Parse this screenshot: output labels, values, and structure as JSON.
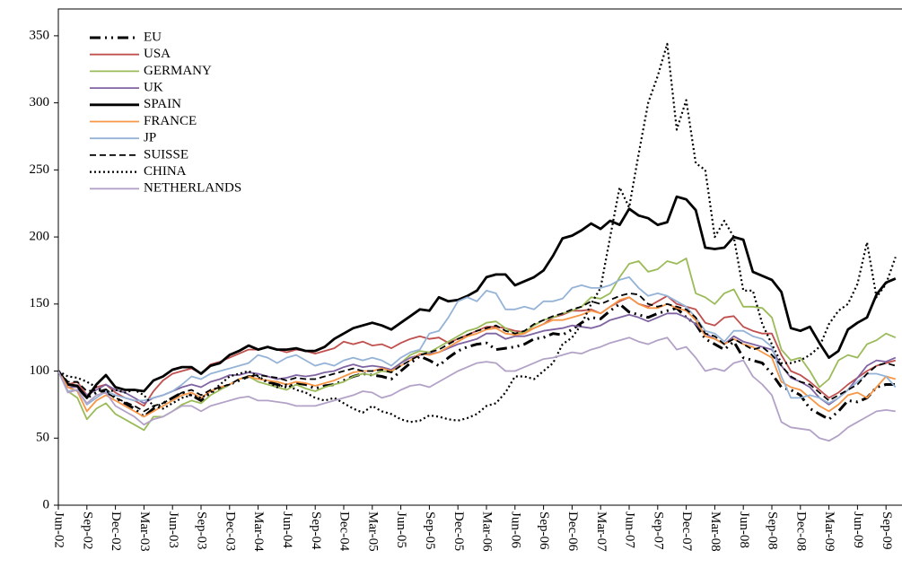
{
  "chart_data": {
    "type": "line",
    "categories": [
      "Jun-02",
      null,
      null,
      "Sep-02",
      null,
      null,
      "Dec-02",
      null,
      null,
      "Mar-03",
      null,
      null,
      "Jun-03",
      null,
      null,
      "Sep-03",
      null,
      null,
      "Dec-03",
      null,
      null,
      "Mar-04",
      null,
      null,
      "Jun-04",
      null,
      null,
      "Sep-04",
      null,
      null,
      "Dec-04",
      null,
      null,
      "Mar-05",
      null,
      null,
      "Jun-05",
      null,
      null,
      "Sep-05",
      null,
      null,
      "Dec-05",
      null,
      null,
      "Mar-06",
      null,
      null,
      "Jun-06",
      null,
      null,
      "Sep-06",
      null,
      null,
      "Dec-06",
      null,
      null,
      "Mar-07",
      null,
      null,
      "Jun-07",
      null,
      null,
      "Sep-07",
      null,
      null,
      "Dec-07",
      null,
      null,
      "Mar-08",
      null,
      null,
      "Jun-08",
      null,
      null,
      "Sep-08",
      null,
      null,
      "Dec-08",
      null,
      null,
      "Mar-09",
      null,
      null,
      "Jun-09",
      null,
      null,
      "Sep-09",
      null
    ],
    "ylim": [
      0,
      370
    ],
    "yticks": [
      0,
      50,
      100,
      150,
      200,
      250,
      300,
      350
    ],
    "grid": false,
    "legend": "upper left",
    "series": [
      {
        "name": "EU",
        "color": "#000000",
        "line_style": "dash-dot",
        "values": [
          100,
          90,
          88,
          80,
          84,
          86,
          80,
          76,
          72,
          66,
          72,
          76,
          80,
          84,
          82,
          78,
          84,
          87,
          90,
          93,
          96,
          95,
          92,
          90,
          88,
          91,
          90,
          87,
          89,
          90,
          93,
          96,
          98,
          97,
          96,
          94,
          100,
          106,
          111,
          108,
          104,
          110,
          115,
          118,
          120,
          121,
          116,
          117,
          118,
          120,
          124,
          125,
          128,
          127,
          131,
          136,
          140,
          139,
          145,
          150,
          144,
          142,
          140,
          143,
          145,
          147,
          140,
          135,
          124,
          120,
          116,
          122,
          110,
          108,
          106,
          98,
          88,
          86,
          82,
          72,
          68,
          64,
          70,
          78,
          77,
          80,
          88,
          90,
          90
        ]
      },
      {
        "name": "USA",
        "color": "#c0504d",
        "line_style": "solid",
        "values": [
          100,
          90,
          92,
          82,
          88,
          90,
          84,
          80,
          78,
          74,
          85,
          93,
          98,
          100,
          102,
          98,
          105,
          107,
          110,
          113,
          116,
          116,
          118,
          116,
          114,
          116,
          115,
          113,
          115,
          117,
          122,
          120,
          122,
          119,
          120,
          117,
          121,
          124,
          126,
          124,
          125,
          121,
          124,
          127,
          130,
          133,
          133,
          132,
          130,
          129,
          132,
          135,
          140,
          142,
          145,
          145,
          146,
          143,
          148,
          152,
          155,
          150,
          148,
          152,
          156,
          150,
          148,
          146,
          136,
          134,
          140,
          141,
          133,
          130,
          128,
          128,
          112,
          100,
          97,
          92,
          86,
          80,
          84,
          90,
          95,
          100,
          104,
          106,
          108
        ]
      },
      {
        "name": "GERMANY",
        "color": "#9bbb59",
        "line_style": "solid",
        "values": [
          100,
          85,
          80,
          64,
          72,
          76,
          68,
          64,
          60,
          56,
          66,
          66,
          70,
          75,
          78,
          76,
          82,
          86,
          90,
          94,
          96,
          92,
          90,
          88,
          86,
          90,
          87,
          85,
          88,
          90,
          92,
          96,
          98,
          97,
          100,
          99,
          106,
          112,
          115,
          114,
          118,
          122,
          126,
          130,
          132,
          136,
          137,
          132,
          128,
          129,
          134,
          138,
          140,
          143,
          145,
          148,
          155,
          154,
          158,
          170,
          180,
          182,
          174,
          176,
          182,
          180,
          184,
          158,
          155,
          150,
          158,
          161,
          148,
          148,
          147,
          140,
          116,
          108,
          110,
          100,
          88,
          94,
          108,
          112,
          110,
          120,
          123,
          128,
          125
        ]
      },
      {
        "name": "UK",
        "color": "#8064a2",
        "line_style": "solid",
        "values": [
          100,
          88,
          88,
          82,
          86,
          90,
          86,
          84,
          80,
          76,
          80,
          82,
          85,
          88,
          90,
          88,
          92,
          94,
          97,
          97,
          99,
          98,
          96,
          94,
          95,
          97,
          96,
          97,
          99,
          100,
          103,
          105,
          103,
          104,
          103,
          101,
          106,
          110,
          112,
          113,
          114,
          117,
          120,
          122,
          124,
          128,
          128,
          124,
          126,
          126,
          128,
          130,
          131,
          132,
          134,
          133,
          132,
          134,
          138,
          140,
          142,
          140,
          137,
          140,
          143,
          143,
          140,
          135,
          128,
          124,
          120,
          126,
          122,
          120,
          118,
          116,
          104,
          95,
          92,
          88,
          80,
          75,
          80,
          86,
          95,
          104,
          108,
          107,
          110
        ]
      },
      {
        "name": "SPAIN",
        "color": "#000000",
        "line_style": "thick",
        "values": [
          100,
          90,
          89,
          80,
          90,
          97,
          88,
          86,
          86,
          85,
          93,
          96,
          101,
          103,
          103,
          98,
          104,
          106,
          112,
          115,
          119,
          116,
          118,
          116,
          116,
          117,
          115,
          115,
          118,
          124,
          128,
          132,
          134,
          136,
          134,
          131,
          136,
          141,
          146,
          145,
          155,
          152,
          153,
          156,
          160,
          170,
          172,
          172,
          164,
          167,
          170,
          175,
          186,
          199,
          201,
          205,
          210,
          206,
          212,
          209,
          221,
          216,
          214,
          209,
          211,
          230,
          228,
          220,
          192,
          191,
          192,
          200,
          198,
          174,
          171,
          168,
          159,
          132,
          130,
          133,
          121,
          110,
          115,
          131,
          136,
          140,
          157,
          166,
          169
        ]
      },
      {
        "name": "FRANCE",
        "color": "#f79646",
        "line_style": "solid",
        "values": [
          100,
          88,
          85,
          70,
          78,
          82,
          78,
          74,
          70,
          66,
          70,
          74,
          78,
          82,
          84,
          80,
          85,
          88,
          90,
          94,
          96,
          94,
          93,
          92,
          90,
          92,
          91,
          89,
          91,
          93,
          96,
          99,
          100,
          100,
          102,
          100,
          104,
          108,
          113,
          112,
          114,
          118,
          122,
          126,
          128,
          131,
          132,
          128,
          127,
          128,
          132,
          135,
          138,
          138,
          140,
          142,
          145,
          143,
          148,
          153,
          155,
          150,
          147,
          147,
          150,
          147,
          145,
          138,
          126,
          124,
          120,
          124,
          120,
          118,
          114,
          110,
          92,
          88,
          86,
          80,
          74,
          70,
          75,
          82,
          84,
          80,
          88,
          96,
          94
        ]
      },
      {
        "name": "JP",
        "color": "#95b3d7",
        "line_style": "solid",
        "values": [
          100,
          85,
          86,
          75,
          80,
          85,
          82,
          80,
          78,
          78,
          80,
          82,
          85,
          90,
          96,
          94,
          98,
          100,
          102,
          104,
          106,
          112,
          110,
          106,
          110,
          112,
          108,
          104,
          106,
          104,
          108,
          110,
          108,
          110,
          108,
          104,
          110,
          114,
          116,
          128,
          130,
          140,
          152,
          155,
          152,
          160,
          158,
          146,
          146,
          148,
          146,
          152,
          152,
          154,
          162,
          164,
          162,
          162,
          164,
          168,
          170,
          162,
          156,
          158,
          156,
          152,
          148,
          140,
          130,
          128,
          122,
          130,
          130,
          126,
          124,
          118,
          96,
          80,
          80,
          82,
          80,
          76,
          80,
          86,
          92,
          98,
          98,
          96,
          88
        ]
      },
      {
        "name": "SUISSE",
        "color": "#000000",
        "line_style": "dashed",
        "values": [
          100,
          92,
          92,
          85,
          86,
          84,
          80,
          77,
          74,
          70,
          74,
          76,
          80,
          84,
          86,
          82,
          86,
          88,
          90,
          94,
          96,
          97,
          96,
          95,
          93,
          95,
          94,
          94,
          96,
          98,
          100,
          102,
          100,
          100,
          101,
          99,
          104,
          108,
          112,
          114,
          116,
          120,
          124,
          127,
          130,
          132,
          134,
          130,
          128,
          130,
          135,
          138,
          141,
          143,
          146,
          148,
          152,
          150,
          153,
          156,
          158,
          157,
          150,
          148,
          150,
          148,
          146,
          140,
          128,
          126,
          120,
          124,
          120,
          116,
          118,
          112,
          104,
          96,
          92,
          90,
          84,
          78,
          82,
          86,
          90,
          98,
          104,
          106,
          104
        ]
      },
      {
        "name": "CHINA",
        "color": "#000000",
        "line_style": "dotted",
        "values": [
          100,
          96,
          95,
          92,
          88,
          84,
          86,
          84,
          86,
          82,
          74,
          72,
          76,
          80,
          82,
          80,
          84,
          90,
          96,
          98,
          100,
          96,
          92,
          88,
          90,
          86,
          84,
          80,
          78,
          80,
          76,
          72,
          69,
          74,
          70,
          68,
          64,
          62,
          63,
          67,
          66,
          64,
          63,
          65,
          68,
          74,
          76,
          84,
          96,
          96,
          94,
          100,
          106,
          120,
          125,
          135,
          150,
          162,
          200,
          237,
          222,
          262,
          300,
          320,
          344,
          280,
          302,
          255,
          250,
          200,
          212,
          200,
          160,
          160,
          135,
          120,
          106,
          106,
          108,
          112,
          118,
          135,
          145,
          150,
          165,
          196,
          155,
          165,
          185
        ]
      },
      {
        "name": "NETHERLANDS",
        "color": "#b3a2c7",
        "line_style": "solid",
        "values": [
          100,
          84,
          86,
          76,
          82,
          84,
          74,
          70,
          66,
          60,
          64,
          66,
          70,
          74,
          74,
          70,
          74,
          76,
          78,
          80,
          81,
          78,
          78,
          77,
          76,
          74,
          74,
          74,
          76,
          78,
          80,
          82,
          85,
          84,
          80,
          82,
          86,
          89,
          90,
          88,
          92,
          96,
          100,
          103,
          106,
          107,
          106,
          100,
          100,
          103,
          106,
          109,
          110,
          112,
          114,
          113,
          116,
          118,
          121,
          123,
          125,
          122,
          120,
          123,
          125,
          116,
          118,
          110,
          100,
          102,
          100,
          106,
          108,
          96,
          90,
          82,
          62,
          58,
          57,
          56,
          50,
          48,
          52,
          58,
          62,
          66,
          70,
          71,
          70
        ]
      }
    ]
  }
}
